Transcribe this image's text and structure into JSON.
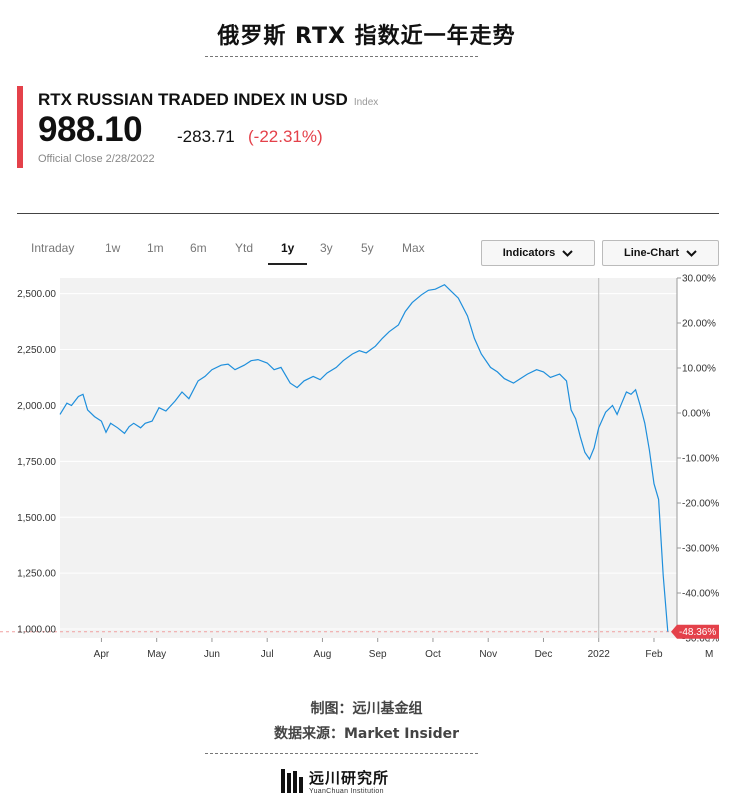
{
  "page_title": "俄罗斯 RTX 指数近一年走势",
  "quote": {
    "name": "RTX RUSSIAN TRADED INDEX IN USD",
    "type_tag": "Index",
    "price": "988.10",
    "change_abs": "-283.71",
    "change_pct": "(-22.31%)",
    "close_note": "Official Close 2/28/2022"
  },
  "range_tabs": [
    "Intraday",
    "1w",
    "1m",
    "6m",
    "Ytd",
    "1y",
    "3y",
    "5y",
    "Max"
  ],
  "active_tab": "1y",
  "controls": {
    "indicators_label": "Indicators",
    "chart_type_label": "Line-Chart"
  },
  "colors": {
    "accent": "#e4414a",
    "line": "#1f8fdc",
    "plot_bg": "#f2f2f2"
  },
  "credits": {
    "maker": "制图：远川基金组",
    "source": "数据来源：Market Insider"
  },
  "logo": {
    "cn": "远川研究所",
    "en": "YuanChuan Institution",
    "icon": "yuanchuan-logo-mark"
  },
  "chart_data": {
    "type": "line",
    "title": "",
    "xlabel": "",
    "ylabel": "",
    "x_tick_labels": [
      "Apr",
      "May",
      "Jun",
      "Jul",
      "Aug",
      "Sep",
      "Oct",
      "Nov",
      "Dec",
      "2022",
      "Feb",
      "M"
    ],
    "y_left_ticks": [
      "1,000.00",
      "1,250.00",
      "1,500.00",
      "1,750.00",
      "2,000.00",
      "2,250.00",
      "2,500.00"
    ],
    "y_right_ticks": [
      "30.00%",
      "20.00%",
      "10.00%",
      "0.00%",
      "-10.00%",
      "-20.00%",
      "-30.00%",
      "-40.00%",
      "-50.00%"
    ],
    "ylim_left": [
      960,
      2570
    ],
    "ylim_right_pct": [
      -50,
      30
    ],
    "last_value_pct_label": "-48.36%",
    "reference_line_value": 988.1,
    "year_marker": "2022",
    "grid": true,
    "series": [
      {
        "values": [
          [
            0,
            1960
          ],
          [
            0.3,
            2010
          ],
          [
            0.5,
            2000
          ],
          [
            0.8,
            2040
          ],
          [
            1.0,
            2050
          ],
          [
            1.2,
            1980
          ],
          [
            1.5,
            1950
          ],
          [
            1.8,
            1930
          ],
          [
            2.0,
            1880
          ],
          [
            2.2,
            1920
          ],
          [
            2.5,
            1900
          ],
          [
            2.8,
            1875
          ],
          [
            3.0,
            1905
          ],
          [
            3.2,
            1920
          ],
          [
            3.5,
            1900
          ],
          [
            3.7,
            1920
          ],
          [
            4.0,
            1930
          ],
          [
            4.3,
            1990
          ],
          [
            4.6,
            1975
          ],
          [
            5.0,
            2020
          ],
          [
            5.3,
            2060
          ],
          [
            5.6,
            2030
          ],
          [
            6.0,
            2110
          ],
          [
            6.3,
            2130
          ],
          [
            6.6,
            2160
          ],
          [
            7.0,
            2180
          ],
          [
            7.3,
            2185
          ],
          [
            7.6,
            2160
          ],
          [
            8.0,
            2180
          ],
          [
            8.3,
            2200
          ],
          [
            8.6,
            2205
          ],
          [
            9.0,
            2190
          ],
          [
            9.3,
            2160
          ],
          [
            9.6,
            2170
          ],
          [
            10.0,
            2100
          ],
          [
            10.3,
            2080
          ],
          [
            10.6,
            2110
          ],
          [
            11.0,
            2130
          ],
          [
            11.3,
            2115
          ],
          [
            11.6,
            2145
          ],
          [
            12.0,
            2170
          ],
          [
            12.3,
            2200
          ],
          [
            12.7,
            2230
          ],
          [
            13.0,
            2245
          ],
          [
            13.3,
            2235
          ],
          [
            13.7,
            2265
          ],
          [
            14.0,
            2300
          ],
          [
            14.3,
            2330
          ],
          [
            14.7,
            2360
          ],
          [
            15.0,
            2420
          ],
          [
            15.3,
            2460
          ],
          [
            15.7,
            2495
          ],
          [
            16.0,
            2515
          ],
          [
            16.3,
            2520
          ],
          [
            16.7,
            2540
          ],
          [
            17.0,
            2510
          ],
          [
            17.3,
            2480
          ],
          [
            17.7,
            2400
          ],
          [
            18.0,
            2300
          ],
          [
            18.3,
            2230
          ],
          [
            18.7,
            2170
          ],
          [
            19.0,
            2150
          ],
          [
            19.3,
            2120
          ],
          [
            19.7,
            2100
          ],
          [
            20.0,
            2120
          ],
          [
            20.3,
            2140
          ],
          [
            20.7,
            2160
          ],
          [
            21.0,
            2150
          ],
          [
            21.3,
            2125
          ],
          [
            21.7,
            2140
          ],
          [
            22.0,
            2110
          ],
          [
            22.2,
            1980
          ],
          [
            22.4,
            1940
          ],
          [
            22.6,
            1860
          ],
          [
            22.8,
            1790
          ],
          [
            23.0,
            1760
          ],
          [
            23.2,
            1810
          ],
          [
            23.4,
            1900
          ],
          [
            23.7,
            1970
          ],
          [
            24.0,
            2000
          ],
          [
            24.2,
            1960
          ],
          [
            24.4,
            2010
          ],
          [
            24.6,
            2060
          ],
          [
            24.8,
            2050
          ],
          [
            25.0,
            2070
          ],
          [
            25.2,
            2000
          ],
          [
            25.4,
            1920
          ],
          [
            25.6,
            1800
          ],
          [
            25.8,
            1650
          ],
          [
            26.0,
            1580
          ],
          [
            26.2,
            1240
          ],
          [
            26.4,
            988.1
          ]
        ]
      }
    ]
  }
}
